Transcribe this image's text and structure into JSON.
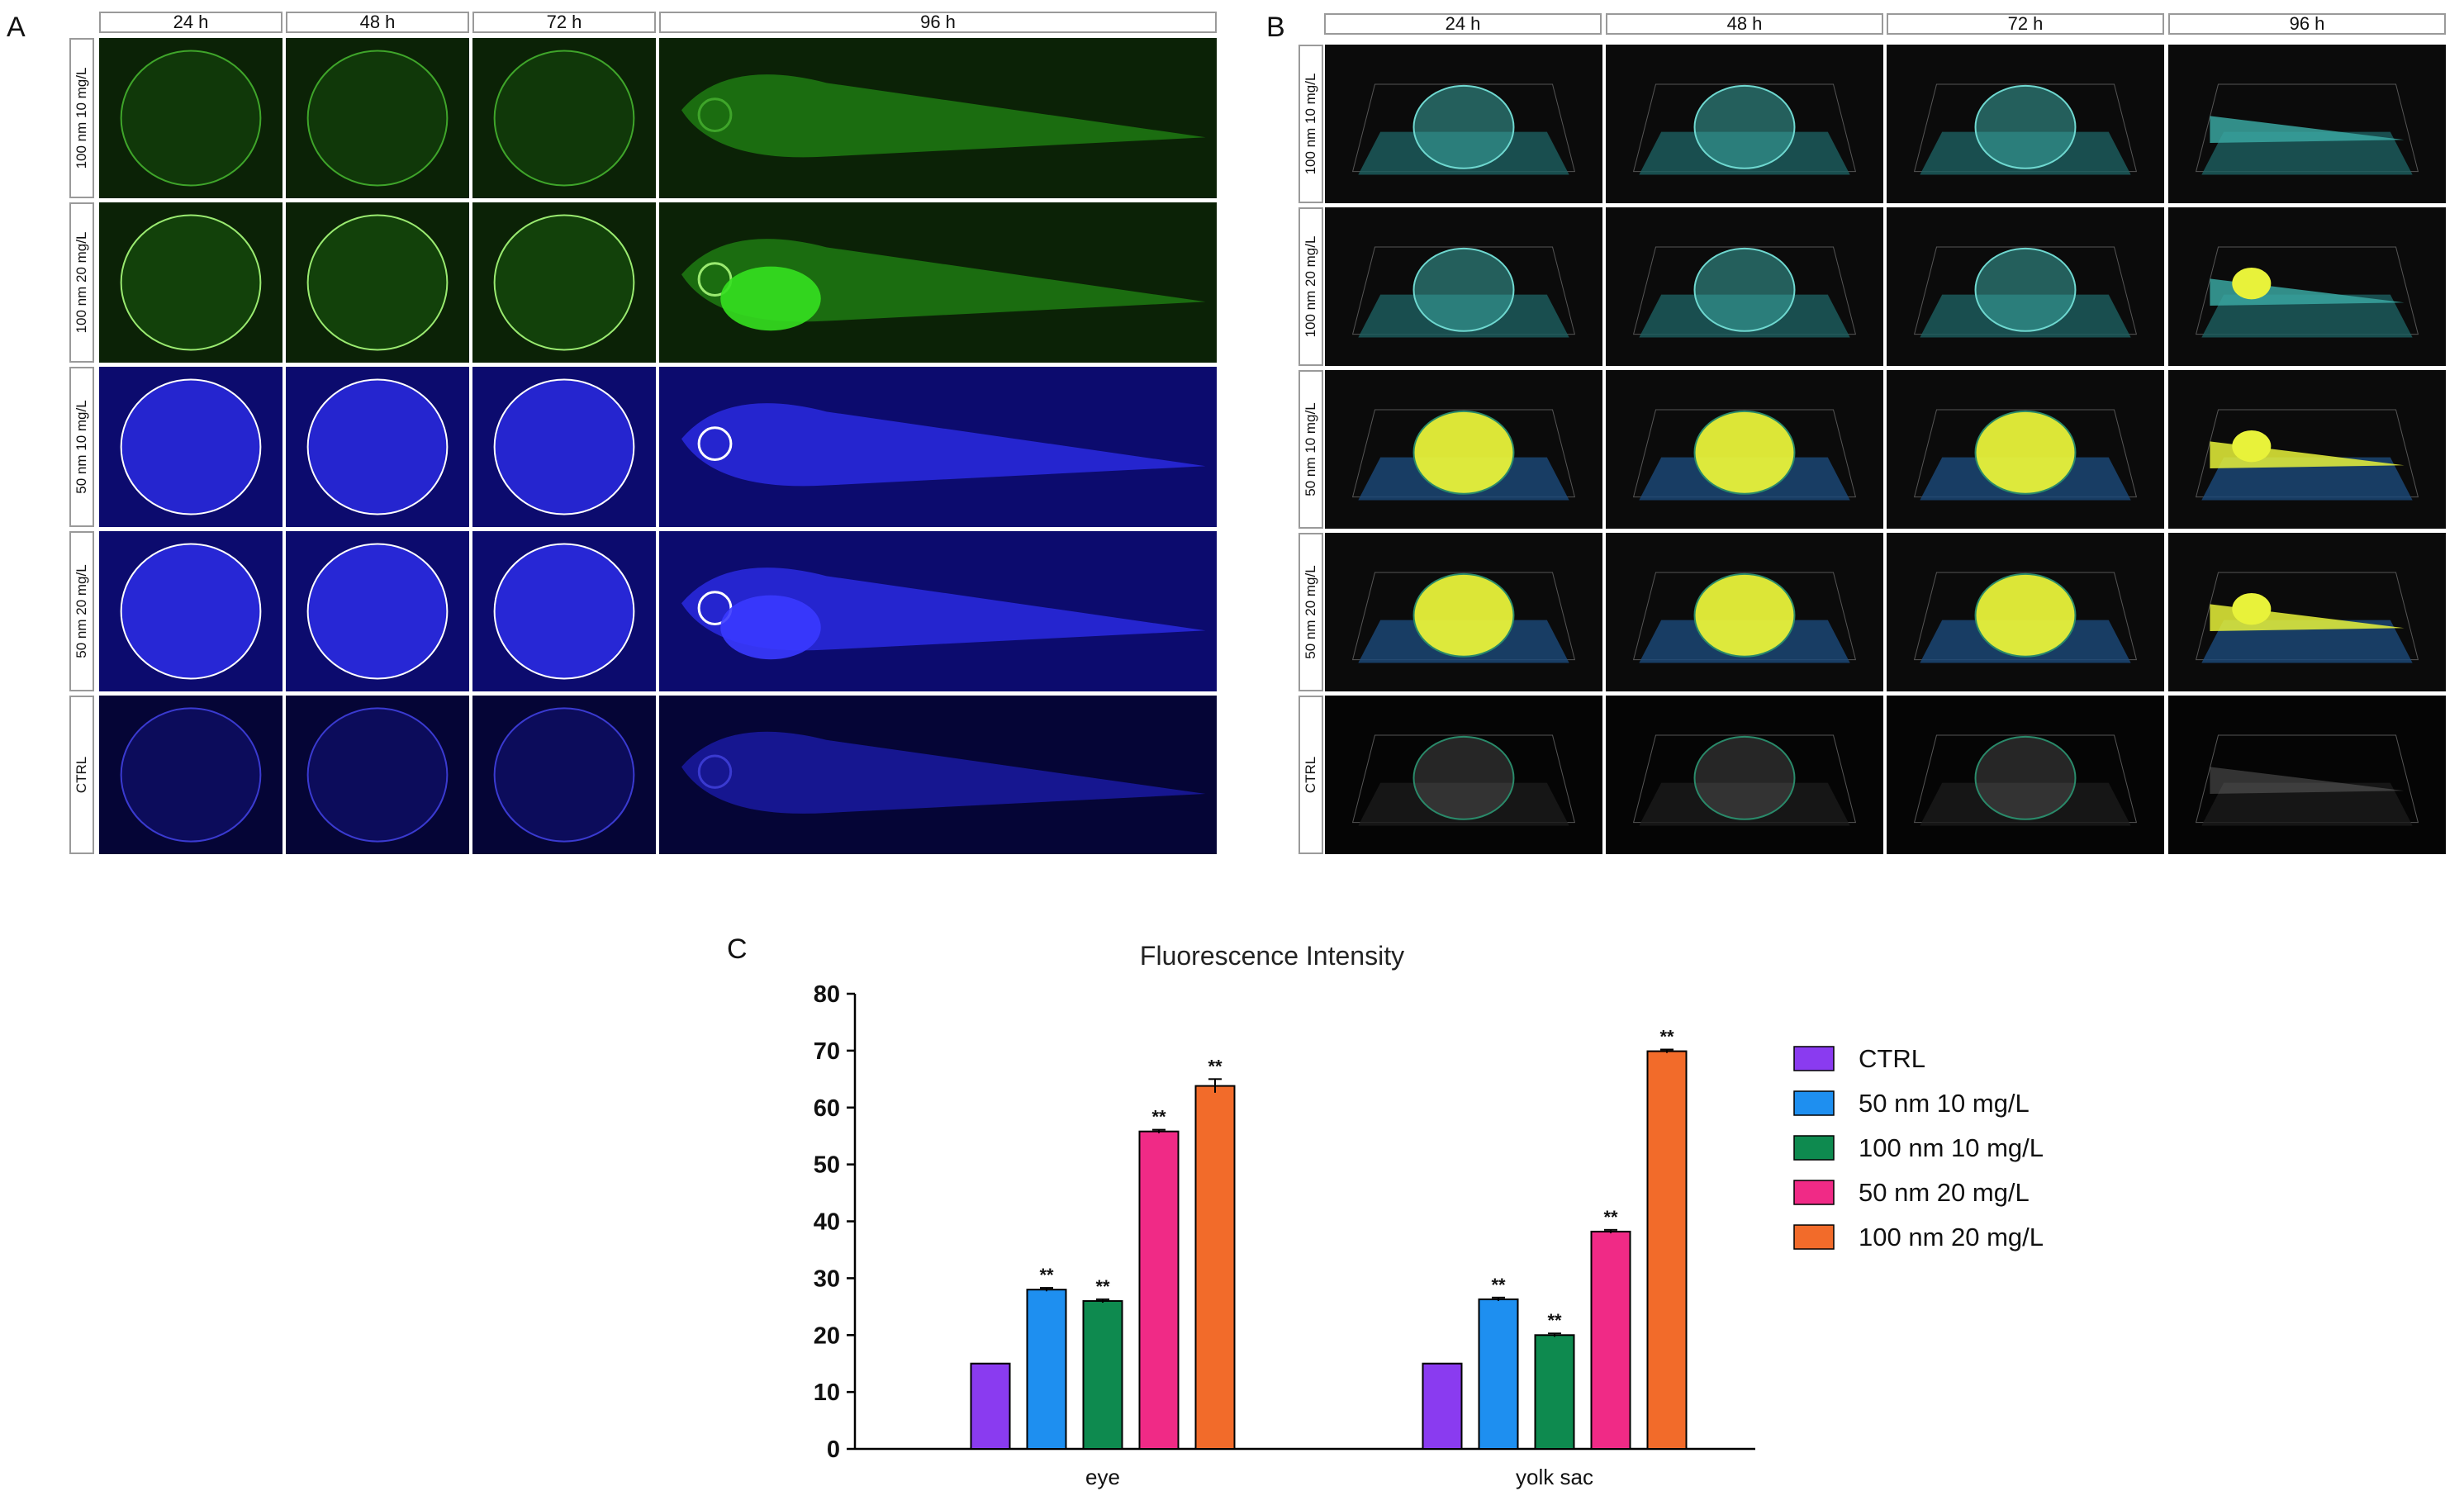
{
  "panels": {
    "a_letter": "A",
    "b_letter": "B",
    "c_letter": "C",
    "timepoints": [
      "24 h",
      "48 h",
      "72 h",
      "96 h"
    ],
    "rows": [
      "100 nm 10 mg/L",
      "100 nm 20 mg/L",
      "50 nm 10 mg/L",
      "50 nm 20 mg/L",
      "CTRL"
    ]
  },
  "colors": {
    "green_bg": "#0b2206",
    "green_fish": "#1f7a13",
    "blue_bg": "#0c0b6e",
    "blue_fish": "#2a2ae0",
    "ctrl_bg": "#050536",
    "render_bg": "#0b0b0b",
    "teal": "#3aa6a0",
    "yellow": "#e8f23a",
    "gray": "#8a8a8a"
  },
  "chart_data": {
    "type": "bar",
    "title": "Fluorescence Intensity",
    "categories": [
      "eye",
      "yolk sac"
    ],
    "ylim": [
      0,
      80
    ],
    "yticks": [
      0,
      10,
      20,
      30,
      40,
      50,
      60,
      70,
      80
    ],
    "series": [
      {
        "name": "CTRL",
        "values": [
          15,
          15
        ],
        "errors": [
          0,
          0
        ],
        "sig": [
          "",
          ""
        ],
        "color": "#8a3bf0"
      },
      {
        "name": "50 nm 10 mg/L",
        "values": [
          28,
          26.3
        ],
        "errors": [
          0.3,
          0.3
        ],
        "sig": [
          "**",
          "**"
        ],
        "color": "#1e8ff0"
      },
      {
        "name": "100 nm 10 mg/L",
        "values": [
          26,
          20
        ],
        "errors": [
          0.3,
          0.3
        ],
        "sig": [
          "**",
          "**"
        ],
        "color": "#0e8a4f"
      },
      {
        "name": "50 nm 20 mg/L",
        "values": [
          55.8,
          38.2
        ],
        "errors": [
          0.3,
          0.3
        ],
        "sig": [
          "**",
          "**"
        ],
        "color": "#f02a86"
      },
      {
        "name": "100 nm 20 mg/L",
        "values": [
          63.8,
          69.9
        ],
        "errors": [
          1.2,
          0.3
        ],
        "sig": [
          "**",
          "**"
        ],
        "color": "#f26b2a"
      }
    ],
    "legend": "right",
    "grid": false
  }
}
